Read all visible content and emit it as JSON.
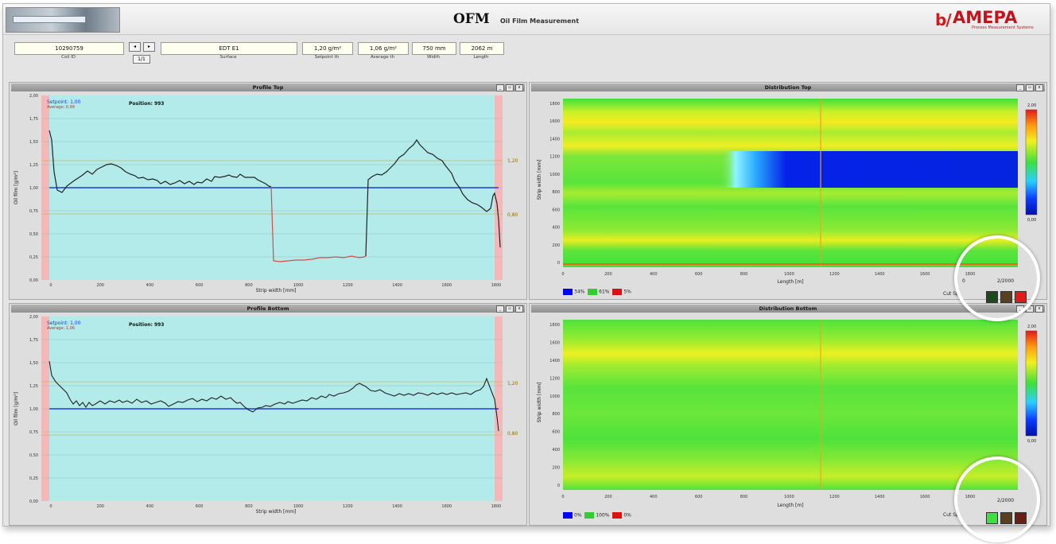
{
  "app": {
    "title": "OFM",
    "subtitle": "Oil Film Measurement",
    "brand_mark": "b/",
    "brand_name": "AMEPA",
    "brand_tag": "Process Measurement Systems"
  },
  "info": {
    "coil_id": "10290759",
    "coil_id_label": "Coil ID",
    "btn_label": "1/1",
    "surface": "EDT E1",
    "surface_label": "Surface",
    "setpoint": "1,20 g/m²",
    "setpoint_label": "Setpoint th",
    "average": "1,06 g/m²",
    "average_label": "Average th",
    "width": "750 mm",
    "width_label": "Width",
    "length": "2062 m",
    "length_label": "Length"
  },
  "panels": {
    "profile_top": {
      "title": "Profile Top",
      "setpoint_text": "Setpoint: 1,00",
      "average_text": "Average: 0,99",
      "position_text": "Position: 993",
      "y_label": "Oil film [g/m²]",
      "x_label": "Strip width [mm]",
      "y_ticks": [
        "2,00",
        "1,75",
        "1,50",
        "1,25",
        "1,00",
        "0,75",
        "0,50",
        "0,25",
        "0,00"
      ],
      "x_ticks": [
        "0",
        "200",
        "400",
        "600",
        "800",
        "1000",
        "1200",
        "1400",
        "1600",
        "1800"
      ],
      "right_ticks": [
        "1,20",
        "0,80"
      ]
    },
    "profile_bottom": {
      "title": "Profile Bottom",
      "setpoint_text": "Setpoint: 1,00",
      "average_text": "Average: 1,06",
      "position_text": "Position: 993",
      "y_label": "Oil film [g/m²]",
      "x_label": "Strip width [mm]",
      "y_ticks": [
        "2,00",
        "1,75",
        "1,50",
        "1,25",
        "1,00",
        "0,75",
        "0,50",
        "0,25",
        "0,00"
      ],
      "x_ticks": [
        "0",
        "200",
        "400",
        "600",
        "800",
        "1000",
        "1200",
        "1400",
        "1600",
        "1800"
      ],
      "right_ticks": [
        "1,20",
        "0,80"
      ]
    },
    "dist_top": {
      "title": "Distribution Top",
      "y_label": "Strip width [mm]",
      "x_label": "Length [m]",
      "y_ticks": [
        "1800",
        "1600",
        "1400",
        "1200",
        "1000",
        "800",
        "600",
        "400",
        "200",
        "0"
      ],
      "x_ticks": [
        "0",
        "200",
        "400",
        "600",
        "800",
        "1000",
        "1200",
        "1400",
        "1600",
        "1800"
      ],
      "scale_max": "2,00",
      "scale_min": "0,00",
      "legend": [
        {
          "color": "#0000ff",
          "label": "34%"
        },
        {
          "color": "#33cc33",
          "label": "61%"
        },
        {
          "color": "#dd1111",
          "label": "5%"
        }
      ],
      "cut_label": "Cut Sp",
      "cut_value": "0",
      "cut_value2": "2/2000"
    },
    "dist_bottom": {
      "title": "Distribution Bottom",
      "y_label": "Strip width [mm]",
      "x_label": "Length [m]",
      "y_ticks": [
        "1800",
        "1600",
        "1400",
        "1200",
        "1000",
        "800",
        "600",
        "400",
        "200",
        "0"
      ],
      "x_ticks": [
        "0",
        "200",
        "400",
        "600",
        "800",
        "1000",
        "1200",
        "1400",
        "1600",
        "1800"
      ],
      "scale_max": "2,00",
      "scale_min": "0,00",
      "legend": [
        {
          "color": "#0000ff",
          "label": "0%"
        },
        {
          "color": "#33cc33",
          "label": "100%"
        },
        {
          "color": "#dd1111",
          "label": "0%"
        }
      ],
      "cut_label": "Cut Sp",
      "cut_value2": "2/2000"
    }
  },
  "colors": {
    "plot_bg": "#b3eaea",
    "edge": "#f5b8b8",
    "setpoint_line": "#1a3fd6",
    "profile_line": "#222222",
    "profile_low": "#d0504a"
  }
}
